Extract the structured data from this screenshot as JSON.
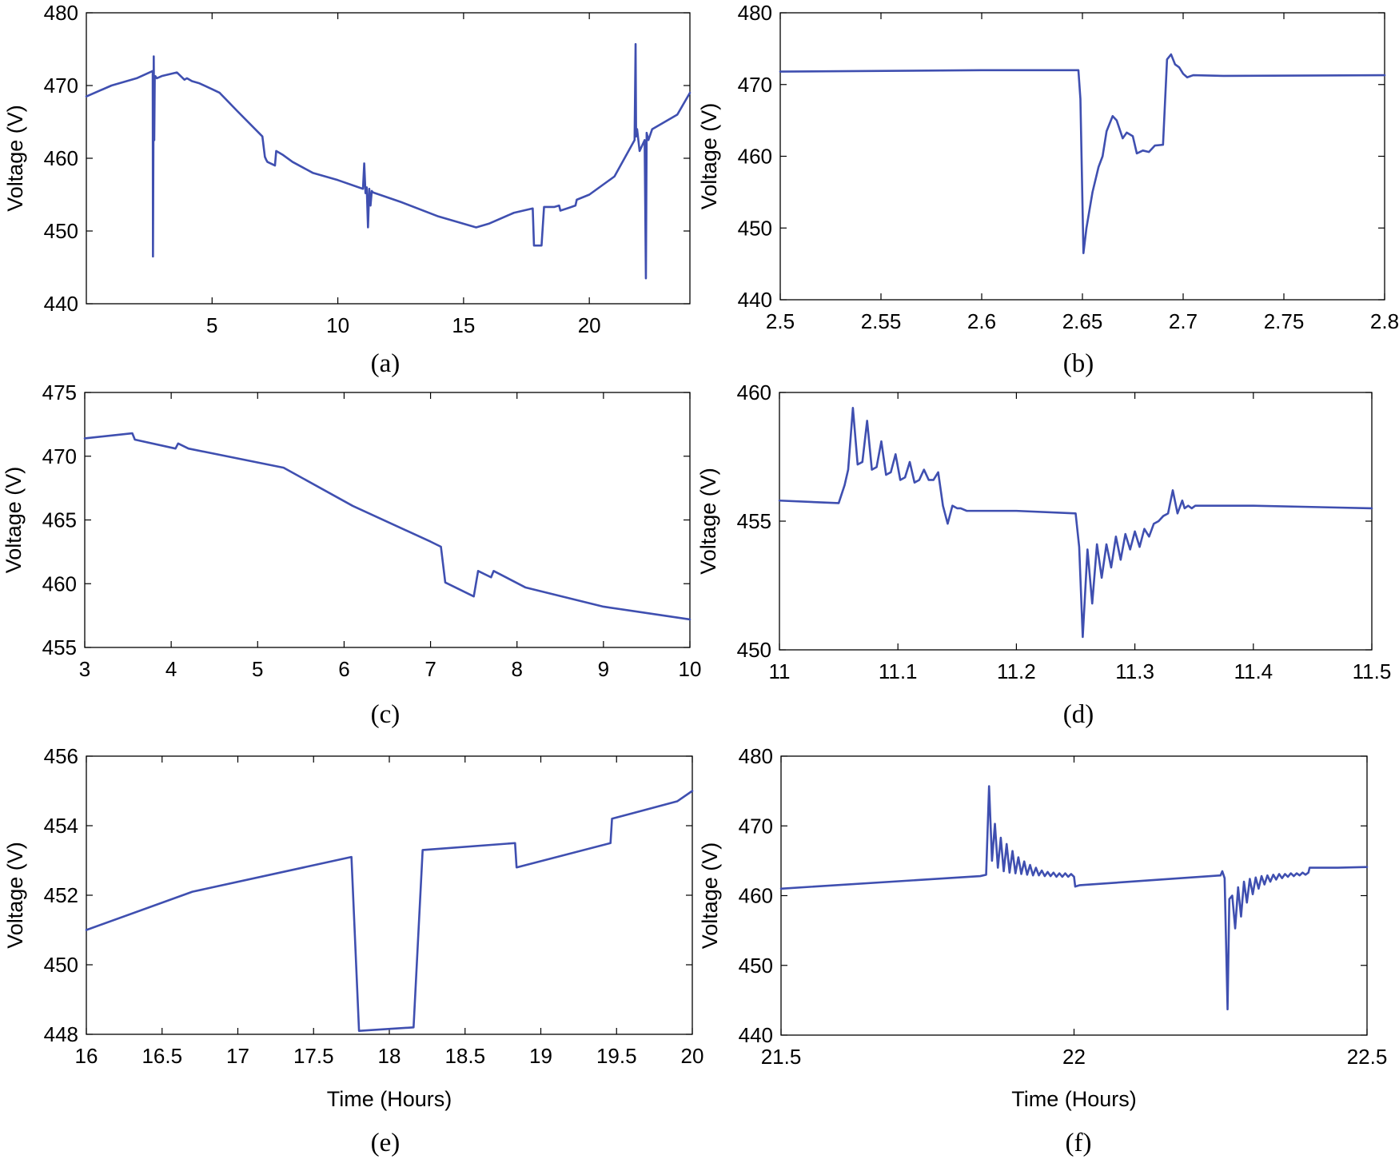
{
  "figure": {
    "line_color": "#3f4fb0"
  },
  "chart_data": [
    {
      "id": "a",
      "type": "line",
      "panel_label": "(a)",
      "ylabel": "Voltage (V)",
      "xlabel": "",
      "xlim": [
        0,
        24
      ],
      "ylim": [
        440,
        480
      ],
      "xticks": [
        5,
        10,
        15,
        20
      ],
      "xtick_labels": [
        "5",
        "10",
        "15",
        "20"
      ],
      "yticks": [
        440,
        450,
        460,
        470,
        480
      ],
      "ytick_labels": [
        "440",
        "450",
        "460",
        "470",
        "480"
      ],
      "series": [
        {
          "name": "Voltage",
          "x": [
            0,
            1,
            2,
            2.64,
            2.65,
            2.68,
            2.7,
            2.72,
            2.74,
            2.8,
            3.0,
            3.6,
            3.9,
            4.0,
            4.2,
            4.5,
            5.0,
            5.3,
            6.0,
            7.0,
            7.1,
            7.15,
            7.2,
            7.5,
            7.55,
            7.7,
            7.8,
            8.2,
            9.0,
            10.0,
            11.0,
            11.05,
            11.1,
            11.15,
            11.2,
            11.25,
            11.3,
            11.35,
            11.4,
            12.5,
            14.0,
            15.5,
            16.0,
            17.0,
            17.75,
            17.8,
            18.1,
            18.2,
            18.6,
            18.8,
            18.85,
            19.2,
            19.45,
            19.5,
            20.0,
            21.0,
            21.8,
            21.84,
            21.86,
            21.9,
            22.0,
            22.2,
            22.25,
            22.28,
            22.35,
            22.5,
            23.5,
            24.0
          ],
          "y": [
            468.5,
            470,
            471,
            472,
            446.5,
            474,
            462.5,
            471,
            471.3,
            471,
            471.3,
            471.8,
            470.8,
            471,
            470.6,
            470.3,
            469.5,
            469,
            466.5,
            463,
            460.2,
            459.8,
            459.5,
            459,
            461,
            460.7,
            460.5,
            459.5,
            458,
            457,
            455.8,
            459.3,
            455.2,
            456,
            450.5,
            455.8,
            453.5,
            455.5,
            455.3,
            454,
            452,
            450.5,
            451,
            452.5,
            453.1,
            448,
            448,
            453.3,
            453.3,
            453.5,
            452.8,
            453.2,
            453.5,
            454.3,
            455,
            457.5,
            462.5,
            475.7,
            463,
            464,
            461,
            462.5,
            443.5,
            463.5,
            462.5,
            464,
            466,
            469
          ]
        }
      ]
    },
    {
      "id": "b",
      "type": "line",
      "panel_label": "(b)",
      "ylabel": "Voltage (V)",
      "xlabel": "",
      "xlim": [
        2.5,
        2.8
      ],
      "ylim": [
        440,
        480
      ],
      "xticks": [
        2.5,
        2.55,
        2.6,
        2.65,
        2.7,
        2.75,
        2.8
      ],
      "xtick_labels": [
        "2.5",
        "2.55",
        "2.6",
        "2.65",
        "2.7",
        "2.75",
        "2.8"
      ],
      "yticks": [
        440,
        450,
        460,
        470,
        480
      ],
      "ytick_labels": [
        "440",
        "450",
        "460",
        "470",
        "480"
      ],
      "series": [
        {
          "name": "Voltage",
          "x": [
            2.5,
            2.6,
            2.648,
            2.649,
            2.6505,
            2.652,
            2.655,
            2.658,
            2.66,
            2.662,
            2.665,
            2.667,
            2.67,
            2.672,
            2.675,
            2.677,
            2.68,
            2.683,
            2.686,
            2.69,
            2.692,
            2.694,
            2.696,
            2.698,
            2.7,
            2.702,
            2.705,
            2.72,
            2.8
          ],
          "y": [
            471.8,
            472,
            472,
            468,
            446.5,
            450,
            455,
            458.5,
            460,
            463.5,
            465.6,
            465,
            462.5,
            463.3,
            462.8,
            460.4,
            460.8,
            460.6,
            461.5,
            461.6,
            473.5,
            474.2,
            472.8,
            472.4,
            471.5,
            471,
            471.3,
            471.2,
            471.3
          ]
        }
      ]
    },
    {
      "id": "c",
      "type": "line",
      "panel_label": "(c)",
      "ylabel": "Voltage (V)",
      "xlabel": "",
      "xlim": [
        3,
        10
      ],
      "ylim": [
        455,
        475
      ],
      "xticks": [
        3,
        4,
        5,
        6,
        7,
        8,
        9,
        10
      ],
      "xtick_labels": [
        "3",
        "4",
        "5",
        "6",
        "7",
        "8",
        "9",
        "10"
      ],
      "yticks": [
        455,
        460,
        465,
        470,
        475
      ],
      "ytick_labels": [
        "455",
        "460",
        "465",
        "470",
        "475"
      ],
      "series": [
        {
          "name": "Voltage",
          "x": [
            3.0,
            3.55,
            3.58,
            4.05,
            4.08,
            4.2,
            5.3,
            6.1,
            7.0,
            7.12,
            7.17,
            7.5,
            7.55,
            7.7,
            7.73,
            8.1,
            9.0,
            10.0
          ],
          "y": [
            471.4,
            471.8,
            471.3,
            470.6,
            471.0,
            470.6,
            469.1,
            466.1,
            463.3,
            462.9,
            460.1,
            459.0,
            461.0,
            460.5,
            461.0,
            459.7,
            458.2,
            457.2
          ]
        }
      ]
    },
    {
      "id": "d",
      "type": "line",
      "panel_label": "(d)",
      "ylabel": "Voltage (V)",
      "xlabel": "",
      "xlim": [
        11,
        11.5
      ],
      "ylim": [
        450,
        460
      ],
      "xticks": [
        11,
        11.1,
        11.2,
        11.3,
        11.4,
        11.5
      ],
      "xtick_labels": [
        "11",
        "11.1",
        "11.2",
        "11.3",
        "11.4",
        "11.5"
      ],
      "yticks": [
        450,
        455,
        460
      ],
      "ytick_labels": [
        "450",
        "455",
        "460"
      ],
      "series": [
        {
          "name": "Voltage",
          "x": [
            11.0,
            11.05,
            11.055,
            11.058,
            11.062,
            11.066,
            11.07,
            11.074,
            11.078,
            11.082,
            11.086,
            11.09,
            11.094,
            11.098,
            11.102,
            11.106,
            11.11,
            11.114,
            11.118,
            11.122,
            11.126,
            11.13,
            11.134,
            11.138,
            11.142,
            11.146,
            11.15,
            11.153,
            11.158,
            11.2,
            11.25,
            11.253,
            11.256,
            11.26,
            11.264,
            11.268,
            11.272,
            11.276,
            11.28,
            11.284,
            11.288,
            11.292,
            11.296,
            11.3,
            11.304,
            11.308,
            11.312,
            11.316,
            11.32,
            11.324,
            11.328,
            11.332,
            11.336,
            11.34,
            11.342,
            11.345,
            11.348,
            11.351,
            11.354,
            11.4,
            11.5
          ],
          "y": [
            455.8,
            455.7,
            456.4,
            457.0,
            459.4,
            457.2,
            457.3,
            458.9,
            457.0,
            457.1,
            458.1,
            456.8,
            456.9,
            457.6,
            456.6,
            456.7,
            457.3,
            456.5,
            456.6,
            457.0,
            456.6,
            456.6,
            456.9,
            455.6,
            454.9,
            455.6,
            455.5,
            455.5,
            455.4,
            455.4,
            455.3,
            454.0,
            450.5,
            453.9,
            451.8,
            454.1,
            452.8,
            454.1,
            453.2,
            454.4,
            453.5,
            454.5,
            453.9,
            454.6,
            454.0,
            454.7,
            454.4,
            454.9,
            455.0,
            455.2,
            455.3,
            456.2,
            455.3,
            455.8,
            455.5,
            455.6,
            455.5,
            455.6,
            455.6,
            455.6,
            455.5
          ]
        }
      ]
    },
    {
      "id": "e",
      "type": "line",
      "panel_label": "(e)",
      "ylabel": "Voltage (V)",
      "xlabel": "Time (Hours)",
      "xlim": [
        16,
        20
      ],
      "ylim": [
        448,
        456
      ],
      "xticks": [
        16,
        16.5,
        17,
        17.5,
        18,
        18.5,
        19,
        19.5,
        20
      ],
      "xtick_labels": [
        "16",
        "16.5",
        "17",
        "17.5",
        "18",
        "18.5",
        "19",
        "19.5",
        "20"
      ],
      "yticks": [
        448,
        450,
        452,
        454,
        456
      ],
      "ytick_labels": [
        "448",
        "450",
        "452",
        "454",
        "456"
      ],
      "series": [
        {
          "name": "Voltage",
          "x": [
            16.0,
            16.7,
            17.75,
            17.8,
            18.16,
            18.22,
            18.83,
            18.84,
            19.46,
            19.47,
            19.9,
            20.0
          ],
          "y": [
            451.0,
            452.1,
            453.1,
            448.1,
            448.2,
            453.3,
            453.5,
            452.8,
            453.5,
            454.2,
            454.7,
            455.0
          ]
        }
      ]
    },
    {
      "id": "f",
      "type": "line",
      "panel_label": "(f)",
      "ylabel": "Voltage (V)",
      "xlabel": "Time (Hours)",
      "xlim": [
        21.5,
        22.5
      ],
      "ylim": [
        440,
        480
      ],
      "xticks": [
        21.5,
        22,
        22.5
      ],
      "xtick_labels": [
        "21.5",
        "22",
        "22.5"
      ],
      "yticks": [
        440,
        450,
        460,
        470,
        480
      ],
      "ytick_labels": [
        "440",
        "450",
        "460",
        "470",
        "480"
      ],
      "series": [
        {
          "name": "Voltage",
          "x": [
            21.5,
            21.84,
            21.85,
            21.855,
            21.86,
            21.865,
            21.87,
            21.875,
            21.88,
            21.885,
            21.89,
            21.895,
            21.9,
            21.905,
            21.91,
            21.915,
            21.92,
            21.925,
            21.93,
            21.935,
            21.94,
            21.945,
            21.95,
            21.955,
            21.96,
            21.965,
            21.97,
            21.975,
            21.98,
            21.985,
            21.99,
            21.995,
            22.0,
            22.002,
            22.01,
            22.25,
            22.253,
            22.257,
            22.262,
            22.265,
            22.27,
            22.275,
            22.28,
            22.285,
            22.29,
            22.295,
            22.3,
            22.305,
            22.31,
            22.315,
            22.32,
            22.325,
            22.33,
            22.335,
            22.34,
            22.345,
            22.35,
            22.355,
            22.36,
            22.365,
            22.37,
            22.375,
            22.38,
            22.385,
            22.39,
            22.395,
            22.4,
            22.402,
            22.45,
            22.5
          ],
          "y": [
            461.0,
            462.8,
            463.0,
            475.7,
            465.0,
            470.3,
            464.0,
            468.3,
            463.5,
            467.4,
            463.3,
            466.4,
            463.2,
            465.5,
            463.1,
            464.9,
            463.0,
            464.4,
            462.9,
            464.0,
            462.9,
            463.6,
            462.8,
            463.4,
            462.8,
            463.3,
            462.7,
            463.2,
            462.7,
            463.2,
            462.7,
            463.1,
            462.7,
            461.3,
            461.5,
            462.9,
            463.5,
            462.5,
            443.7,
            459.5,
            460.0,
            455.3,
            461.2,
            457.0,
            462.0,
            459.0,
            462.4,
            460.2,
            462.6,
            461.0,
            462.8,
            461.6,
            462.9,
            462.0,
            463.0,
            462.3,
            463.1,
            462.5,
            463.1,
            462.7,
            463.2,
            462.8,
            463.2,
            462.9,
            463.3,
            463.0,
            463.3,
            464.0,
            464.0,
            464.1
          ]
        }
      ]
    }
  ]
}
